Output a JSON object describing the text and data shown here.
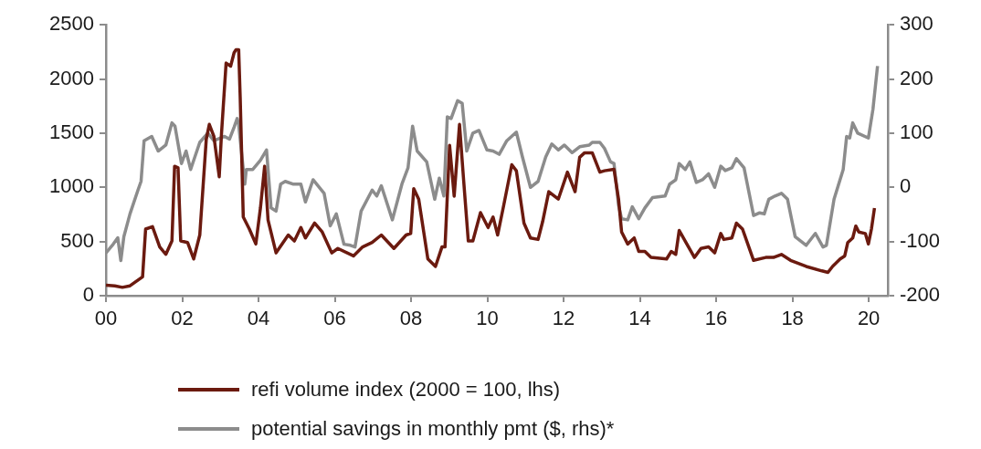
{
  "chart_data": {
    "type": "line",
    "xlim": [
      0,
      20.5
    ],
    "xticks": [
      {
        "value": 0,
        "label": "00"
      },
      {
        "value": 2,
        "label": "02"
      },
      {
        "value": 4,
        "label": "04"
      },
      {
        "value": 6,
        "label": "06"
      },
      {
        "value": 8,
        "label": "08"
      },
      {
        "value": 10,
        "label": "10"
      },
      {
        "value": 12,
        "label": "12"
      },
      {
        "value": 14,
        "label": "14"
      },
      {
        "value": 16,
        "label": "16"
      },
      {
        "value": 18,
        "label": "18"
      },
      {
        "value": 20,
        "label": "20"
      }
    ],
    "ylim": [
      0,
      2500
    ],
    "yticks": [
      0,
      500,
      1000,
      1500,
      2000,
      2500
    ],
    "y2lim": [
      -200,
      300
    ],
    "y2ticks": [
      -200,
      -100,
      0,
      100,
      200,
      300
    ],
    "grid": false,
    "legend": "bottom",
    "marker": "none",
    "line_style": "solid",
    "series": [
      {
        "name": "refi volume index (2000 = 100, lhs)",
        "color": "#6b1a0f",
        "x": [
          0,
          0.23,
          0.43,
          0.63,
          0.96,
          1.04,
          1.22,
          1.41,
          1.57,
          1.73,
          1.8,
          1.89,
          1.96,
          2.14,
          2.3,
          2.46,
          2.63,
          2.71,
          2.83,
          2.97,
          3.03,
          3.15,
          3.27,
          3.36,
          3.41,
          3.48,
          3.52,
          3.6,
          3.76,
          3.93,
          4.05,
          4.16,
          4.25,
          4.46,
          4.78,
          4.94,
          5.11,
          5.23,
          5.47,
          5.67,
          5.92,
          6.08,
          6.49,
          6.73,
          6.98,
          7.22,
          7.55,
          7.87,
          7.99,
          8.07,
          8.2,
          8.44,
          8.64,
          8.81,
          8.89,
          9.01,
          9.13,
          9.27,
          9.38,
          9.5,
          9.62,
          9.82,
          10.02,
          10.15,
          10.27,
          10.43,
          10.64,
          10.76,
          10.96,
          11.13,
          11.33,
          11.45,
          11.61,
          11.86,
          12.1,
          12.3,
          12.42,
          12.55,
          12.75,
          12.95,
          13.07,
          13.32,
          13.44,
          13.52,
          13.68,
          13.85,
          13.97,
          14.13,
          14.29,
          14.7,
          14.82,
          14.94,
          15.03,
          15.23,
          15.43,
          15.6,
          15.8,
          15.96,
          16.12,
          16.2,
          16.41,
          16.53,
          16.69,
          16.98,
          17.3,
          17.5,
          17.71,
          17.95,
          18.36,
          18.77,
          18.93,
          19.05,
          19.25,
          19.37,
          19.45,
          19.58,
          19.66,
          19.74,
          19.91,
          19.99,
          20.07,
          20.15
        ],
        "values": [
          97,
          91,
          77,
          91,
          174,
          615,
          637,
          450,
          381,
          505,
          1195,
          1181,
          505,
          491,
          339,
          560,
          1443,
          1581,
          1471,
          1098,
          1498,
          2147,
          2119,
          2243,
          2271,
          2271,
          1829,
          726,
          615,
          477,
          808,
          1195,
          698,
          395,
          560,
          505,
          629,
          533,
          670,
          588,
          395,
          436,
          367,
          450,
          491,
          560,
          436,
          560,
          574,
          988,
          891,
          339,
          270,
          450,
          450,
          1388,
          919,
          1581,
          1057,
          505,
          505,
          767,
          629,
          726,
          560,
          836,
          1209,
          1153,
          670,
          533,
          519,
          684,
          960,
          891,
          1140,
          960,
          1277,
          1319,
          1319,
          1140,
          1153,
          1167,
          891,
          588,
          477,
          533,
          408,
          408,
          353,
          339,
          408,
          381,
          602,
          477,
          353,
          436,
          450,
          395,
          574,
          519,
          533,
          670,
          615,
          326,
          353,
          353,
          381,
          326,
          270,
          229,
          215,
          270,
          339,
          367,
          491,
          533,
          643,
          588,
          574,
          477,
          615,
          808
        ]
      },
      {
        "name": "potential savings in monthly pmt ($, rhs)*",
        "color": "#8c8c8c",
        "axis": "y2",
        "x": [
          0,
          0.19,
          0.31,
          0.39,
          0.47,
          0.63,
          0.84,
          0.92,
          1,
          1.2,
          1.37,
          1.57,
          1.73,
          1.81,
          1.98,
          2.1,
          2.22,
          2.46,
          2.67,
          2.83,
          3.11,
          3.24,
          3.36,
          3.44,
          3.48,
          3.64,
          3.68,
          3.85,
          4.05,
          4.21,
          4.33,
          4.46,
          4.58,
          4.7,
          4.9,
          5.11,
          5.23,
          5.43,
          5.72,
          5.88,
          6.04,
          6.24,
          6.41,
          6.53,
          6.69,
          6.98,
          7.1,
          7.22,
          7.51,
          7.76,
          7.92,
          8.04,
          8.16,
          8.41,
          8.62,
          8.74,
          8.86,
          8.95,
          9.05,
          9.22,
          9.34,
          9.46,
          9.62,
          9.78,
          9.99,
          10.15,
          10.31,
          10.51,
          10.76,
          10.92,
          11.13,
          11.33,
          11.53,
          11.69,
          11.86,
          12.02,
          12.22,
          12.42,
          12.67,
          12.75,
          12.95,
          13.07,
          13.23,
          13.32,
          13.44,
          13.52,
          13.68,
          13.8,
          13.97,
          14.13,
          14.33,
          14.66,
          14.78,
          14.94,
          15.03,
          15.19,
          15.31,
          15.48,
          15.64,
          15.8,
          15.96,
          16.12,
          16.24,
          16.41,
          16.53,
          16.73,
          16.98,
          17.14,
          17.26,
          17.38,
          17.54,
          17.71,
          17.87,
          18.07,
          18.36,
          18.6,
          18.8,
          18.89,
          19.09,
          19.33,
          19.42,
          19.5,
          19.58,
          19.71,
          19.99,
          20.11,
          20.23
        ],
        "values": [
          -121,
          -105,
          -93,
          -135,
          -91,
          -49,
          -5,
          11,
          86,
          94,
          67,
          78,
          119,
          113,
          44,
          67,
          33,
          83,
          100,
          86,
          94,
          89,
          111,
          127,
          116,
          6,
          33,
          33,
          50,
          69,
          -38,
          -44,
          6,
          11,
          6,
          6,
          -27,
          14,
          -11,
          -71,
          -49,
          -105,
          -107,
          -110,
          -44,
          -5,
          -16,
          3,
          -60,
          6,
          36,
          113,
          67,
          47,
          -22,
          17,
          -16,
          130,
          127,
          160,
          155,
          67,
          100,
          105,
          69,
          67,
          61,
          86,
          102,
          56,
          0,
          11,
          56,
          80,
          69,
          78,
          64,
          75,
          78,
          83,
          83,
          72,
          47,
          44,
          -33,
          -58,
          -60,
          -36,
          -58,
          -38,
          -19,
          -16,
          6,
          14,
          44,
          33,
          47,
          9,
          14,
          25,
          0,
          39,
          31,
          36,
          53,
          36,
          -52,
          -47,
          -49,
          -22,
          -16,
          -11,
          -22,
          -91,
          -107,
          -85,
          -110,
          -107,
          -22,
          33,
          94,
          91,
          119,
          100,
          91,
          144,
          224
        ]
      }
    ]
  }
}
